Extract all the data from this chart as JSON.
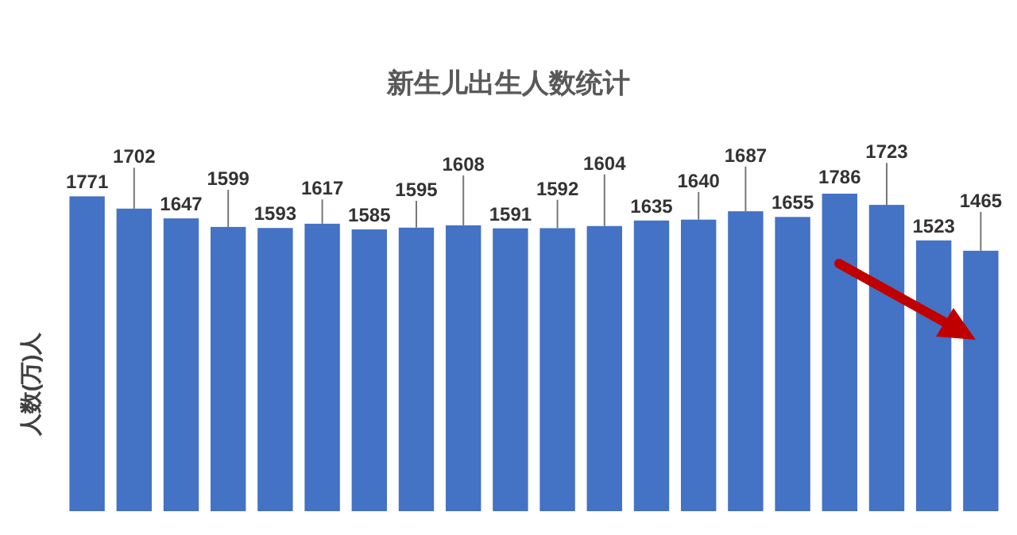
{
  "chart_data": {
    "type": "bar",
    "title": "新生儿出生人数统计",
    "ylabel": "人数(万)人",
    "categories": [
      null,
      null,
      null,
      null,
      null,
      null,
      null,
      null,
      null,
      null,
      null,
      null,
      null,
      null,
      null,
      null,
      null,
      null,
      null,
      null
    ],
    "values": [
      1771,
      1702,
      1647,
      1599,
      1593,
      1617,
      1585,
      1595,
      1608,
      1591,
      1592,
      1604,
      1635,
      1640,
      1687,
      1655,
      1786,
      1723,
      1523,
      1465
    ],
    "color": "#4472c4",
    "data_labels": true
  }
}
